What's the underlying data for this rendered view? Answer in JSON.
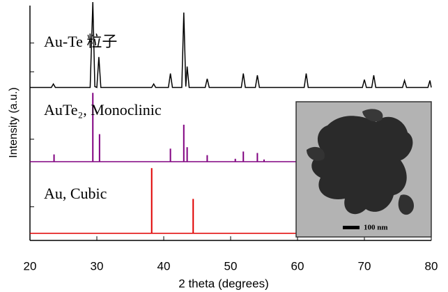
{
  "chart_data": {
    "type": "xrd",
    "xlabel": "2 theta (degrees)",
    "ylabel": "Intensity (a.u.)",
    "xlim": [
      20,
      80
    ],
    "xticks": [
      20,
      30,
      40,
      50,
      60,
      70,
      80
    ],
    "inset_label": "100 nm",
    "panels": [
      {
        "name": "Au-Te 粒子",
        "type": "line",
        "color": "#000000",
        "ylim": [
          0,
          100
        ],
        "yticks": [
          20,
          53
        ],
        "x": [
          20,
          23.2,
          23.5,
          23.8,
          29.0,
          29.4,
          29.7,
          30.0,
          30.3,
          30.6,
          38.2,
          38.5,
          38.8,
          40.7,
          41,
          41.3,
          42.7,
          43,
          43.3,
          43.5,
          43.8,
          46.2,
          46.5,
          46.8,
          51.6,
          51.9,
          52.2,
          53.7,
          54,
          54.3,
          61,
          61.3,
          61.6,
          69.7,
          70,
          70.3,
          71.1,
          71.4,
          71.7,
          75.7,
          76,
          76.3,
          79.5,
          79.8,
          80
        ],
        "values": [
          2,
          2,
          6,
          2,
          2,
          100,
          3,
          2,
          37,
          2,
          2,
          6,
          2,
          2,
          18,
          2,
          2,
          88,
          3,
          26,
          2,
          2,
          12,
          2,
          2,
          18,
          2,
          2,
          16,
          2,
          2,
          18,
          2,
          2,
          11,
          2,
          2,
          16,
          2,
          2,
          10,
          2,
          2,
          10,
          2
        ]
      },
      {
        "name": "AuTe₂, Monoclinic",
        "type": "stick",
        "color": "#800080",
        "ylim": [
          0,
          100
        ],
        "yticks": [
          31
        ],
        "x": [
          23.6,
          29.4,
          30.4,
          41,
          43,
          43.5,
          46.5,
          50.7,
          51.9,
          54,
          55
        ],
        "values": [
          10,
          95,
          38,
          18,
          51,
          20,
          9,
          4,
          14,
          12,
          3
        ]
      },
      {
        "name": "Au, Cubic",
        "type": "stick",
        "color": "#e00000",
        "ylim": [
          -10,
          100
        ],
        "yticks": [
          37
        ],
        "x": [
          38.2,
          44.4
        ],
        "values": [
          91,
          48
        ]
      }
    ]
  }
}
